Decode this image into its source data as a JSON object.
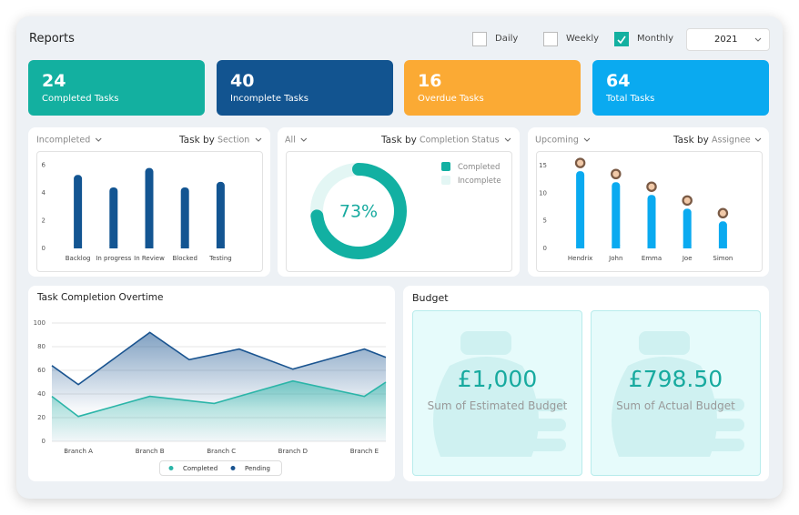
{
  "header": {
    "title": "Reports",
    "filters": [
      "Daily",
      "Weekly",
      "Monthly"
    ],
    "checked": [
      false,
      false,
      true
    ],
    "year": "2021"
  },
  "cards": [
    {
      "value": 24,
      "label": "Completed Tasks",
      "color": "#13b0a0"
    },
    {
      "value": 40,
      "label": "Incomplete Tasks",
      "color": "#125490"
    },
    {
      "value": 16,
      "label": "Overdue Tasks",
      "color": "#fbaa34"
    },
    {
      "value": 64,
      "label": "Total Tasks",
      "color": "#0aaaf0"
    }
  ],
  "chart_data": [
    {
      "type": "bar",
      "filter": "Incompleted",
      "group_label": "Task by",
      "group": "Section",
      "categories": [
        "Backlog",
        "In progress",
        "In Review",
        "Blocked",
        "Testing"
      ],
      "values": [
        5.3,
        4.4,
        5.8,
        4.4,
        4.8
      ],
      "color": "#135592",
      "ylim": [
        0,
        6.5
      ],
      "yticks": [
        0,
        2,
        4,
        6
      ]
    },
    {
      "type": "donut",
      "filter": "All",
      "group_label": "Task by",
      "group": "Completion Status",
      "categories": [
        "Completed",
        "Incomplete"
      ],
      "values": [
        73,
        27
      ],
      "value_labels": [
        "73%",
        null
      ],
      "colors": [
        "#12b0a2",
        "#e3f6f4"
      ],
      "legend": "right"
    },
    {
      "type": "bar",
      "filter": "Upcoming",
      "group_label": "Task by",
      "group": "Assignee",
      "categories": [
        "Hendrix",
        "John",
        "Emma",
        "Joe",
        "Simon"
      ],
      "values": [
        14,
        12,
        9.7,
        7.2,
        4.9
      ],
      "color": "#0aaaf0",
      "avatars": true,
      "ylim": [
        0,
        16
      ],
      "yticks": [
        0,
        5,
        10,
        15
      ]
    },
    {
      "type": "area",
      "title": "Task Completion Overtime",
      "xlim": [
        -0.37,
        4.3
      ],
      "xticks": [
        {
          "value": 0,
          "label": "Branch A"
        },
        {
          "value": 1,
          "label": "Branch B"
        },
        {
          "value": 2,
          "label": "Branch C"
        },
        {
          "value": 3,
          "label": "Branch D"
        },
        {
          "value": 4,
          "label": "Branch E"
        }
      ],
      "ylim": [
        0,
        100
      ],
      "yticks": [
        0,
        20,
        40,
        60,
        80,
        100
      ],
      "grid": true,
      "legend": "bottom",
      "series": [
        {
          "name": "Completed",
          "color": "#2bb5a8",
          "x": [
            -0.37,
            0,
            1,
            1.9,
            3,
            4,
            4.3
          ],
          "values": [
            38,
            21,
            38,
            32,
            51,
            38,
            50
          ]
        },
        {
          "name": "Pending",
          "color": "#1a5490",
          "x": [
            -0.37,
            0,
            1,
            1.55,
            2.25,
            3,
            4,
            4.3
          ],
          "values": [
            64,
            48,
            92,
            69,
            78,
            61,
            78,
            71
          ]
        }
      ]
    }
  ],
  "budget": {
    "title": "Budget",
    "items": [
      {
        "value": "£1,000",
        "label": "Sum of Estimated Budget"
      },
      {
        "value": "£798.50",
        "label": "Sum of Actual Budget"
      }
    ]
  }
}
